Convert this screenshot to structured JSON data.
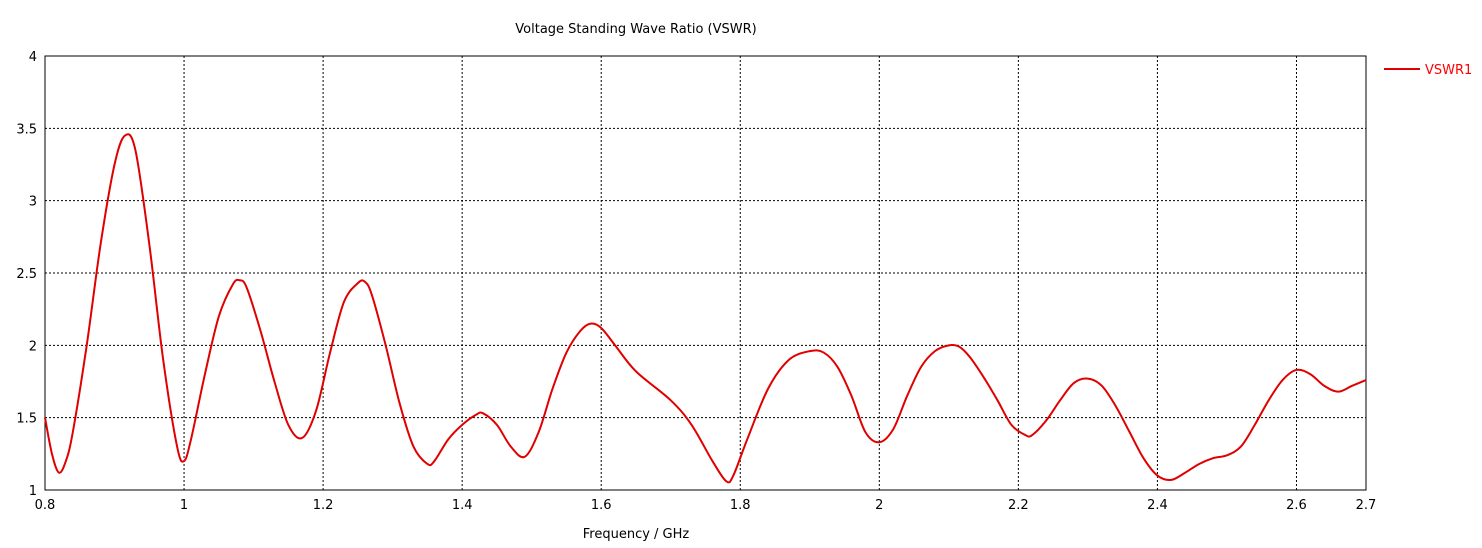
{
  "chart_data": {
    "type": "line",
    "title": "Voltage Standing Wave Ratio (VSWR)",
    "xlabel": "Frequency / GHz",
    "ylabel": "",
    "xlim": [
      0.8,
      2.7
    ],
    "ylim": [
      1,
      4
    ],
    "xticks": [
      "0.8",
      "1",
      "1.2",
      "1.4",
      "1.6",
      "1.8",
      "2",
      "2.2",
      "2.4",
      "2.6",
      "2.7"
    ],
    "xtick_values": [
      0.8,
      1.0,
      1.2,
      1.4,
      1.6,
      1.8,
      2.0,
      2.2,
      2.4,
      2.6,
      2.7
    ],
    "yticks": [
      "1",
      "1.5",
      "2",
      "2.5",
      "3",
      "3.5",
      "4"
    ],
    "ytick_values": [
      1,
      1.5,
      2,
      2.5,
      3,
      3.5,
      4
    ],
    "grid": true,
    "legend_position": "top-right",
    "series": [
      {
        "name": "VSWR1",
        "color": "#e00000",
        "x": [
          0.8,
          0.81,
          0.82,
          0.83,
          0.84,
          0.86,
          0.88,
          0.9,
          0.915,
          0.93,
          0.95,
          0.97,
          0.99,
          1.0,
          1.01,
          1.03,
          1.05,
          1.07,
          1.08,
          1.09,
          1.11,
          1.13,
          1.15,
          1.17,
          1.19,
          1.21,
          1.23,
          1.25,
          1.26,
          1.27,
          1.29,
          1.31,
          1.33,
          1.35,
          1.36,
          1.38,
          1.4,
          1.42,
          1.43,
          1.45,
          1.47,
          1.49,
          1.51,
          1.53,
          1.55,
          1.57,
          1.585,
          1.6,
          1.62,
          1.65,
          1.7,
          1.73,
          1.76,
          1.78,
          1.79,
          1.81,
          1.84,
          1.87,
          1.9,
          1.92,
          1.94,
          1.96,
          1.98,
          2.0,
          2.02,
          2.04,
          2.06,
          2.08,
          2.1,
          2.115,
          2.13,
          2.15,
          2.17,
          2.19,
          2.21,
          2.22,
          2.24,
          2.26,
          2.28,
          2.3,
          2.32,
          2.34,
          2.36,
          2.38,
          2.4,
          2.42,
          2.44,
          2.46,
          2.48,
          2.5,
          2.52,
          2.54,
          2.56,
          2.58,
          2.6,
          2.62,
          2.64,
          2.66,
          2.68,
          2.7
        ],
        "values": [
          1.5,
          1.25,
          1.12,
          1.2,
          1.4,
          2.0,
          2.7,
          3.25,
          3.45,
          3.35,
          2.7,
          1.9,
          1.3,
          1.2,
          1.35,
          1.8,
          2.2,
          2.42,
          2.45,
          2.4,
          2.1,
          1.75,
          1.45,
          1.36,
          1.55,
          1.95,
          2.3,
          2.43,
          2.44,
          2.35,
          2.0,
          1.6,
          1.3,
          1.18,
          1.2,
          1.35,
          1.45,
          1.52,
          1.53,
          1.45,
          1.3,
          1.23,
          1.4,
          1.7,
          1.95,
          2.1,
          2.15,
          2.12,
          2.0,
          1.82,
          1.62,
          1.45,
          1.2,
          1.06,
          1.1,
          1.35,
          1.7,
          1.9,
          1.96,
          1.95,
          1.85,
          1.65,
          1.4,
          1.33,
          1.42,
          1.65,
          1.85,
          1.96,
          2.0,
          1.99,
          1.92,
          1.78,
          1.62,
          1.45,
          1.38,
          1.38,
          1.48,
          1.62,
          1.74,
          1.77,
          1.72,
          1.58,
          1.4,
          1.22,
          1.1,
          1.07,
          1.12,
          1.18,
          1.22,
          1.24,
          1.3,
          1.45,
          1.62,
          1.76,
          1.83,
          1.8,
          1.72,
          1.68,
          1.72,
          1.76
        ]
      }
    ]
  }
}
